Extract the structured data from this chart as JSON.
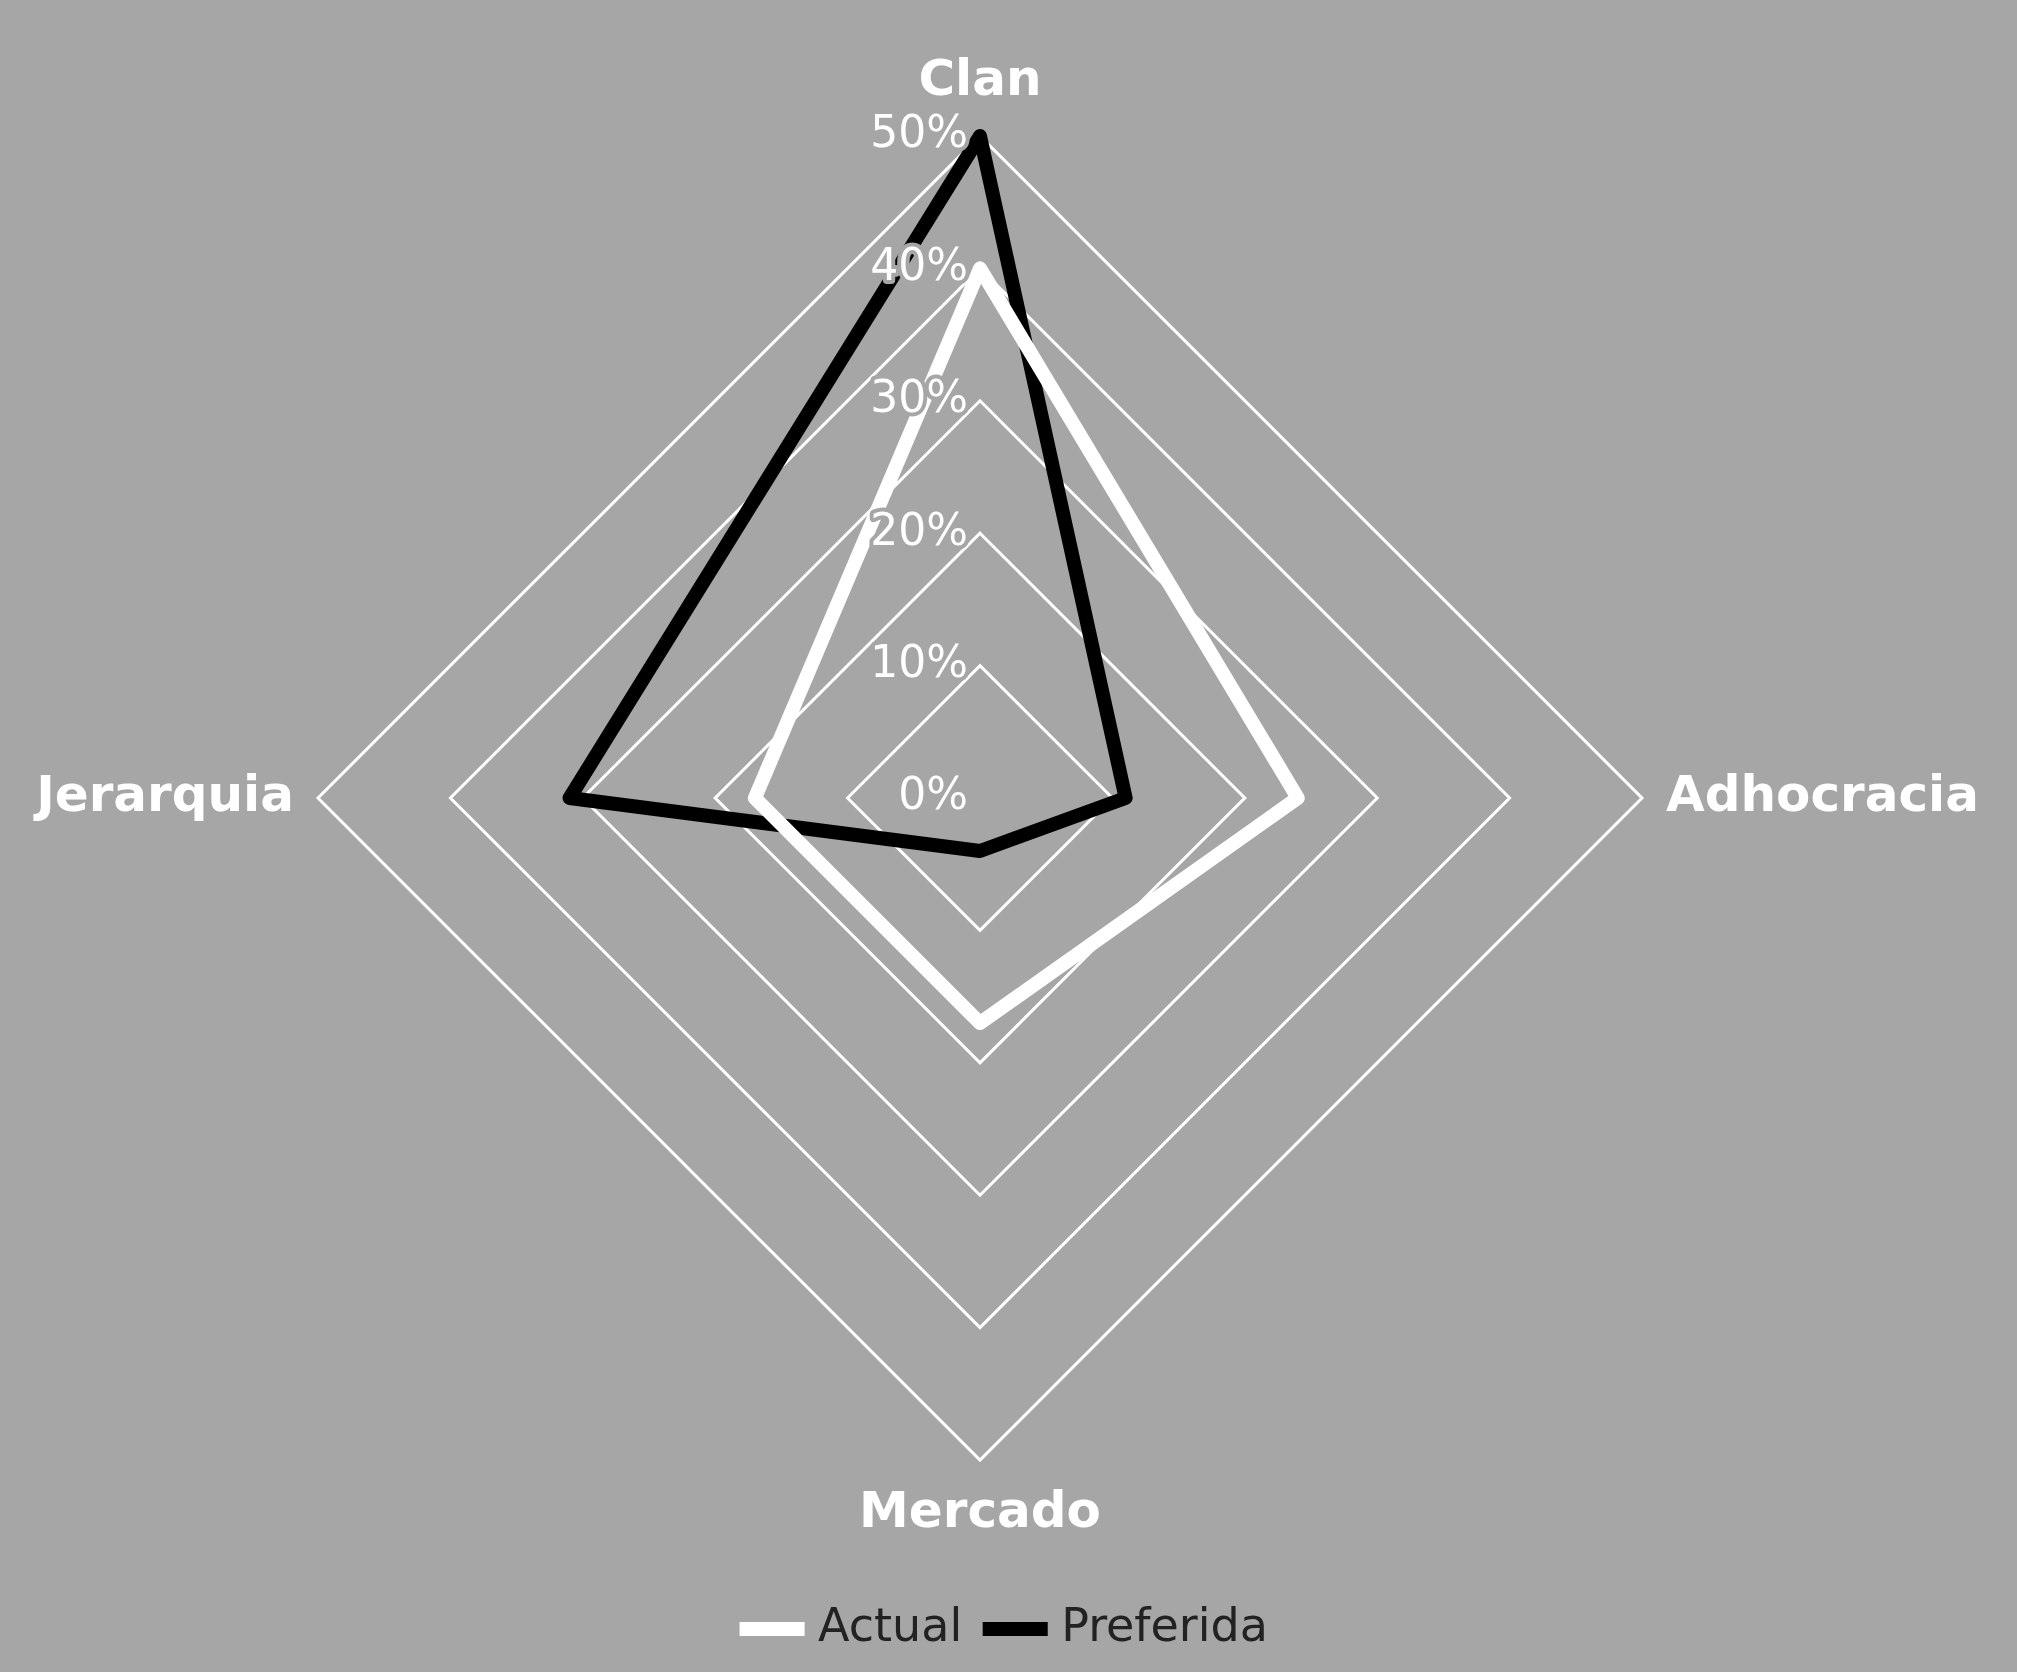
{
  "chart_data": {
    "type": "radar",
    "categories": [
      "Clan",
      "Adhocracia",
      "Mercado",
      "Jerarquia"
    ],
    "series": [
      {
        "name": "Actual",
        "color": "#ffffff",
        "values": [
          40,
          24,
          17,
          17
        ]
      },
      {
        "name": "Preferida",
        "color": "#000000",
        "values": [
          50,
          11,
          4,
          31
        ]
      }
    ],
    "ylim": [
      0,
      50
    ],
    "yticks": [
      {
        "value": 0,
        "label": "0%"
      },
      {
        "value": 10,
        "label": "10%"
      },
      {
        "value": 20,
        "label": "20%"
      },
      {
        "value": 30,
        "label": "30%"
      },
      {
        "value": 40,
        "label": "40%"
      },
      {
        "value": 50,
        "label": "50%"
      }
    ],
    "grid": true,
    "legend": "bottom",
    "marker": "none",
    "line_style": "solid"
  }
}
